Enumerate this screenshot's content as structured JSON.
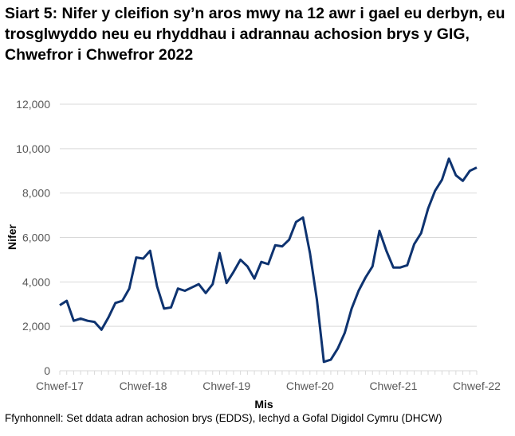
{
  "chart_data": {
    "type": "line",
    "title": "Siart 5: Nifer y cleifion sy’n aros mwy na 12 awr i gael eu derbyn, eu trosglwyddo neu eu rhyddhau i adrannau achosion brys y GIG, Chwefror i Chwefror 2022",
    "xlabel": "Mis",
    "ylabel": "Nifer",
    "ylim": [
      0,
      12000
    ],
    "yticks": [
      "0",
      "2,000",
      "4,000",
      "6,000",
      "8,000",
      "10,000",
      "12,000"
    ],
    "xtick_labels": [
      "Chwef-17",
      "Chwef-18",
      "Chwef-19",
      "Chwef-20",
      "Chwef-21",
      "Chwef-22"
    ],
    "x_start": "2017-02",
    "x_end": "2022-02",
    "grid": "horizontal",
    "line_color": "#0E3370",
    "values": [
      2950,
      3150,
      2250,
      2350,
      2250,
      2200,
      1850,
      2400,
      3050,
      3150,
      3700,
      5100,
      5050,
      5400,
      3800,
      2800,
      2850,
      3700,
      3600,
      3750,
      3900,
      3500,
      3900,
      5300,
      3950,
      4450,
      5000,
      4700,
      4150,
      4900,
      4800,
      5650,
      5600,
      5900,
      6700,
      6900,
      5300,
      3200,
      400,
      500,
      1000,
      1700,
      2800,
      3600,
      4200,
      4700,
      6300,
      5400,
      4650,
      4650,
      4750,
      5700,
      6200,
      7300,
      8100,
      8600,
      9550,
      8800,
      8550,
      9000,
      9150
    ]
  },
  "source": "Ffynhonnell: Set ddata adran achosion brys (EDDS), Iechyd a Gofal Digidol Cymru (DHCW)"
}
